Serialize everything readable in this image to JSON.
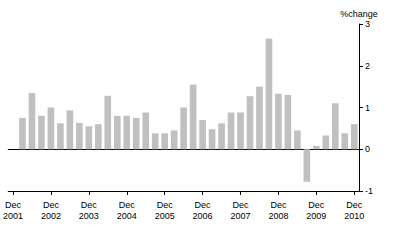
{
  "chart_data": {
    "type": "bar",
    "y_label": "%change",
    "categories": [
      "Dec\n2001",
      null,
      null,
      null,
      "Dec\n2002",
      null,
      null,
      null,
      "Dec\n2003",
      null,
      null,
      null,
      "Dec\n2004",
      null,
      null,
      null,
      "Dec\n2005",
      null,
      null,
      null,
      "Dec\n2006",
      null,
      null,
      null,
      "Dec\n2007",
      null,
      null,
      null,
      "Dec\n2008",
      null,
      null,
      null,
      "Dec\n2009",
      null,
      null,
      null,
      "Dec\n2010"
    ],
    "values": [
      null,
      0.75,
      1.35,
      0.8,
      1.0,
      0.62,
      0.93,
      0.63,
      0.55,
      0.6,
      1.28,
      0.8,
      0.8,
      0.75,
      0.88,
      0.38,
      0.38,
      0.45,
      1.0,
      1.55,
      0.7,
      0.48,
      0.62,
      0.88,
      0.88,
      1.27,
      1.5,
      2.65,
      1.33,
      1.3,
      0.45,
      -0.78,
      0.08,
      0.33,
      1.1,
      0.38,
      0.6
    ],
    "color": "#c0c0c0",
    "ylim": [
      -1,
      3
    ],
    "yticks": [
      -1,
      0,
      1,
      2,
      3
    ],
    "grid": false
  }
}
